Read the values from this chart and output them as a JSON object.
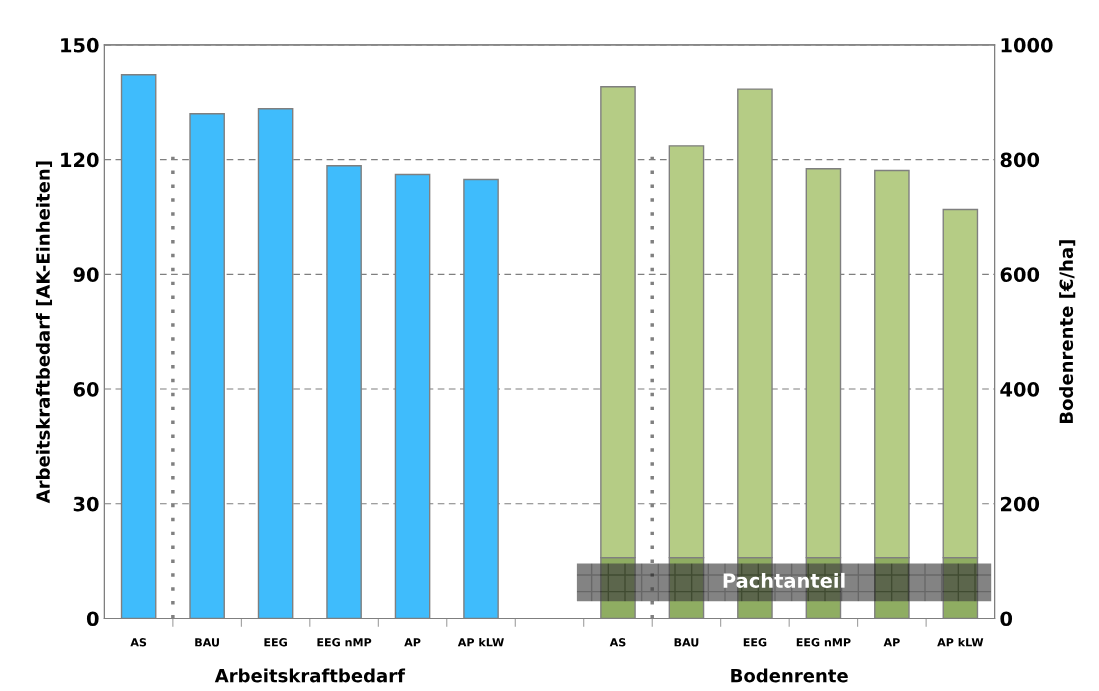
{
  "chart_data": {
    "type": "bar",
    "ylabel": "Arbeitskraftbedarf [AK-Einheiten]",
    "y2label": "Bodenrente [€/ha]",
    "categories": [
      "AS",
      "BAU",
      "EEG",
      "EEG nMP",
      "AP",
      "AP kLW",
      null,
      "AS",
      "BAU",
      "EEG",
      "EEG nMP",
      "AP",
      "AP kLW"
    ],
    "stacked": true,
    "series": [
      {
        "color": "#3fbcfc",
        "values": [
          142.2,
          132,
          133.3,
          118.4,
          116.1,
          114.8,
          null,
          null,
          null,
          null,
          null,
          null,
          null
        ]
      },
      {
        "color": "#8fad62",
        "axis": "y2",
        "values": [
          null,
          null,
          null,
          null,
          null,
          null,
          null,
          106,
          106,
          106,
          106,
          106,
          106
        ]
      },
      {
        "color": "#b5cc85",
        "axis": "y2",
        "values": [
          null,
          null,
          null,
          null,
          null,
          null,
          null,
          821,
          718,
          817,
          678,
          675,
          607
        ]
      }
    ],
    "ylim": [
      0,
      150
    ],
    "yticks": [
      0,
      30,
      60,
      90,
      120,
      150
    ],
    "y2lim": [
      0,
      1000
    ],
    "y2ticks": [
      0,
      200,
      400,
      600,
      800,
      1000
    ],
    "grid": "y",
    "bands": [
      {
        "axis": "y2",
        "from": 30,
        "to": 96,
        "label": "Pachtanteil",
        "color": "#404040"
      }
    ],
    "annotations": [
      "Arbeitskraftbedarf",
      "Bodenrente"
    ]
  }
}
